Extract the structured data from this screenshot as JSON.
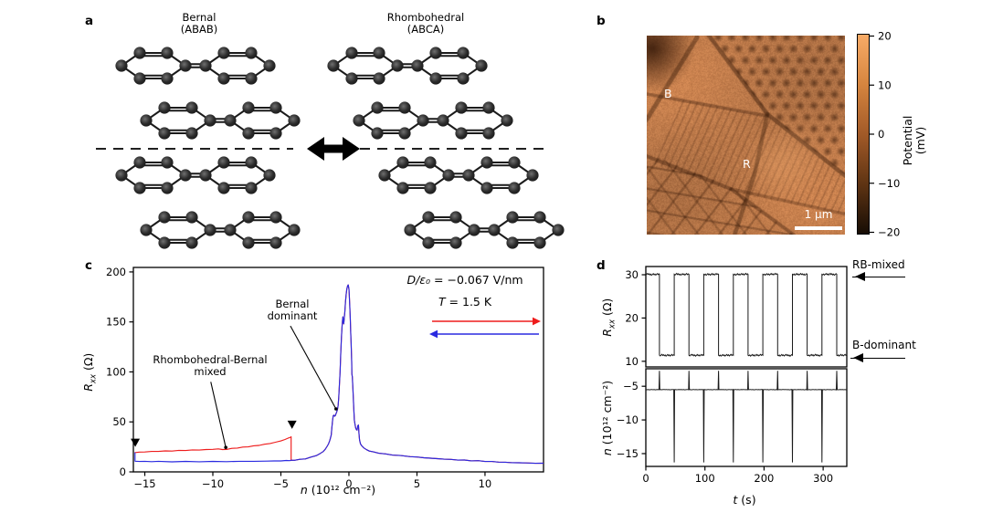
{
  "figure": {
    "background": "#ffffff",
    "panels": {
      "a": {
        "label": "a",
        "structures": [
          {
            "name": "bernal",
            "title_line1": "Bernal",
            "title_line2": "(ABAB)",
            "stack_offsets": [
              0,
              1,
              0,
              1
            ]
          },
          {
            "name": "rhombohedral",
            "title_line1": "Rhombohedral",
            "title_line2": "(ABCA)",
            "stack_offsets": [
              0,
              1,
              2,
              3
            ]
          }
        ]
      },
      "b": {
        "label": "b",
        "region_label_b": "B",
        "region_label_r": "R",
        "scalebar_label": "1 µm",
        "colorbar": {
          "label": "Potential (mV)",
          "ticks": [
            "20",
            "10",
            "0",
            "−10",
            "−20"
          ],
          "tick_values": [
            20,
            10,
            0,
            -10,
            -20
          ],
          "range": [
            -20,
            20
          ],
          "gradient_top_to_bottom": [
            "#f8ab67",
            "#d6853f",
            "#a25a28",
            "#5f3413",
            "#170d05"
          ]
        }
      },
      "c": {
        "label": "c"
      },
      "d": {
        "label": "d"
      }
    }
  },
  "chart_data": [
    {
      "panel": "c",
      "type": "line",
      "title": "",
      "xlabel_var": "n",
      "xlabel_rest": " (10¹² cm⁻²)",
      "ylabel_var": "R",
      "ylabel_sub": "xx",
      "ylabel_rest": " (Ω)",
      "xlim": [
        -15.84,
        14.3
      ],
      "ylim": [
        0,
        204.5
      ],
      "xticks": [
        -15,
        -10,
        -5,
        0,
        5,
        10
      ],
      "yticks": [
        0,
        50,
        100,
        150,
        200
      ],
      "grid": false,
      "legend": {
        "line1_var": "D/ε₀",
        "line1_rest": " = −0.067 V/nm",
        "line2_var": "T",
        "line2_rest": " = 1.5 K",
        "forward_color": "#ee1c1c",
        "backward_color": "#2a2ae0",
        "forward_direction": "right",
        "backward_direction": "left"
      },
      "annotations": [
        {
          "id": "mixed",
          "line1": "Rhombohedral-Bernal",
          "line2": "mixed",
          "arrow_from": [
            -10.15,
            90
          ],
          "target_xy": [
            -9.05,
            24.5
          ]
        },
        {
          "id": "bernal",
          "line1": "Bernal",
          "line2": "dominant",
          "arrow_from": [
            -4.3,
            146
          ],
          "target_xy": [
            -0.95,
            63
          ]
        }
      ],
      "switch_markers": [
        [
          -15.7,
          25
        ],
        [
          -4.18,
          43
        ]
      ],
      "series": [
        {
          "name": "forward sweep",
          "color": "#ee1c1c",
          "branch_points": [
            [
              -15.75,
              19.3
            ],
            [
              -15.4,
              19.8
            ],
            [
              -15,
              20
            ],
            [
              -14.5,
              20.3
            ],
            [
              -14,
              20.6
            ],
            [
              -13.5,
              20.8
            ],
            [
              -13,
              21
            ],
            [
              -12.5,
              21.3
            ],
            [
              -12,
              21.6
            ],
            [
              -11.5,
              21.8
            ],
            [
              -11,
              22
            ],
            [
              -10.5,
              22.3
            ],
            [
              -10,
              22.6
            ],
            [
              -9.6,
              23
            ],
            [
              -9.3,
              22.3
            ],
            [
              -9,
              22.6
            ],
            [
              -8.6,
              23.4
            ],
            [
              -8.2,
              24
            ],
            [
              -7.8,
              24.6
            ],
            [
              -7.4,
              25.2
            ],
            [
              -7,
              25.9
            ],
            [
              -6.6,
              26.7
            ],
            [
              -6.2,
              27.5
            ],
            [
              -5.8,
              28.5
            ],
            [
              -5.4,
              29.6
            ],
            [
              -5,
              31
            ],
            [
              -4.7,
              32.4
            ],
            [
              -4.45,
              33.8
            ],
            [
              -4.28,
              34.8
            ],
            [
              -4.25,
              35
            ],
            [
              -4.25,
              11.5
            ]
          ]
        },
        {
          "name": "backward sweep",
          "color": "#2a2ae0",
          "branch_points": [
            [
              -15.72,
              19.5
            ],
            [
              -15.72,
              10.6
            ],
            [
              -15.4,
              10.5
            ],
            [
              -15,
              10.4
            ],
            [
              -14.5,
              10.4
            ],
            [
              -14,
              10.4
            ],
            [
              -13,
              10.3
            ],
            [
              -12,
              10.3
            ],
            [
              -11,
              10.3
            ],
            [
              -10,
              10.35
            ],
            [
              -9,
              10.4
            ],
            [
              -8,
              10.5
            ],
            [
              -7,
              10.6
            ],
            [
              -6,
              10.8
            ],
            [
              -5.5,
              10.9
            ],
            [
              -5,
              11.05
            ],
            [
              -4.6,
              11.25
            ],
            [
              -4.35,
              11.4
            ]
          ]
        }
      ],
      "common_points": [
        [
          -4.25,
          11.5
        ],
        [
          -4,
          11.8
        ],
        [
          -3.6,
          12.4
        ],
        [
          -3.2,
          13.2
        ],
        [
          -2.8,
          14.6
        ],
        [
          -2.4,
          16.4
        ],
        [
          -2.1,
          18.4
        ],
        [
          -1.9,
          20.3
        ],
        [
          -1.75,
          22.5
        ],
        [
          -1.6,
          25.5
        ],
        [
          -1.5,
          28
        ],
        [
          -1.4,
          31.5
        ],
        [
          -1.3,
          37
        ],
        [
          -1.25,
          44
        ],
        [
          -1.2,
          52
        ],
        [
          -1.15,
          56
        ],
        [
          -1.1,
          57
        ],
        [
          -1.05,
          55.5
        ],
        [
          -1,
          56.5
        ],
        [
          -0.95,
          58
        ],
        [
          -0.9,
          60
        ],
        [
          -0.85,
          62
        ],
        [
          -0.8,
          66
        ],
        [
          -0.75,
          74
        ],
        [
          -0.7,
          86
        ],
        [
          -0.65,
          100
        ],
        [
          -0.6,
          118
        ],
        [
          -0.55,
          135
        ],
        [
          -0.5,
          146
        ],
        [
          -0.47,
          152
        ],
        [
          -0.44,
          155
        ],
        [
          -0.41,
          150
        ],
        [
          -0.38,
          148
        ],
        [
          -0.35,
          153
        ],
        [
          -0.3,
          160
        ],
        [
          -0.25,
          170
        ],
        [
          -0.2,
          178
        ],
        [
          -0.15,
          183
        ],
        [
          -0.1,
          186
        ],
        [
          -0.05,
          187
        ],
        [
          0,
          183
        ],
        [
          0.03,
          176
        ],
        [
          0.06,
          166
        ],
        [
          0.1,
          152
        ],
        [
          0.13,
          140
        ],
        [
          0.16,
          128
        ],
        [
          0.2,
          110
        ],
        [
          0.22,
          98
        ],
        [
          0.25,
          95
        ],
        [
          0.3,
          82
        ],
        [
          0.35,
          65
        ],
        [
          0.4,
          52
        ],
        [
          0.45,
          47
        ],
        [
          0.5,
          44
        ],
        [
          0.55,
          42
        ],
        [
          0.6,
          42
        ],
        [
          0.65,
          46
        ],
        [
          0.7,
          47
        ],
        [
          0.74,
          38
        ],
        [
          0.78,
          32
        ],
        [
          0.85,
          28
        ],
        [
          0.95,
          26
        ],
        [
          1.1,
          24
        ],
        [
          1.3,
          22
        ],
        [
          1.5,
          21
        ],
        [
          1.8,
          19.8
        ],
        [
          2.2,
          18.8
        ],
        [
          2.7,
          17.8
        ],
        [
          3.2,
          17
        ],
        [
          3.8,
          16.2
        ],
        [
          4.5,
          15.4
        ],
        [
          5,
          14.8
        ],
        [
          5.5,
          14.2
        ],
        [
          6,
          13.7
        ],
        [
          6.5,
          13.2
        ],
        [
          7,
          12.8
        ],
        [
          7.5,
          12.4
        ],
        [
          8,
          12
        ],
        [
          8.5,
          11.7
        ],
        [
          9,
          11.3
        ],
        [
          9.5,
          11
        ],
        [
          10,
          10.6
        ],
        [
          10.5,
          10.2
        ],
        [
          11,
          9.9
        ],
        [
          11.5,
          9.6
        ],
        [
          12,
          9.3
        ],
        [
          12.5,
          9.1
        ],
        [
          13,
          8.9
        ],
        [
          13.7,
          8.7
        ],
        [
          14.3,
          8.5
        ]
      ]
    },
    {
      "panel": "d_top",
      "type": "line",
      "title": "",
      "ylabel_var": "R",
      "ylabel_sub": "xx",
      "ylabel_rest": " (Ω)",
      "xlim": [
        0,
        340
      ],
      "ylim": [
        8.7,
        31.9
      ],
      "yticks": [
        10,
        20,
        30
      ],
      "line_color": "#1a1a1a",
      "square_wave": {
        "high": 30.1,
        "low": 11.4,
        "initial": "high",
        "drop_times": [
          23,
          73,
          123,
          173,
          223,
          273,
          323
        ],
        "rise_times": [
          48,
          98,
          148,
          198,
          248,
          298
        ],
        "t_end": 340
      },
      "state_labels": [
        {
          "text": "RB-mixed",
          "value": 30.1
        },
        {
          "text": "B-dominant",
          "value": 11.4
        }
      ]
    },
    {
      "panel": "d_bottom",
      "type": "line",
      "title": "",
      "ylabel_var": "n",
      "ylabel_rest": " (10¹² cm⁻²)",
      "xlabel_var": "t",
      "xlabel_rest": " (s)",
      "xlim": [
        0,
        340
      ],
      "ylim": [
        -16.9,
        -2.4
      ],
      "xticks": [
        0,
        100,
        200,
        300
      ],
      "yticks": [
        -5,
        -10,
        -15
      ],
      "line_color": "#1a1a1a",
      "pulse_train": {
        "baseline": -5.5,
        "up_value": -2.7,
        "up_times": [
          23,
          73,
          123,
          173,
          223,
          273,
          323
        ],
        "down_value": -16.3,
        "down_times": [
          48,
          98,
          148,
          198,
          248,
          298
        ],
        "t_end": 340
      }
    }
  ]
}
